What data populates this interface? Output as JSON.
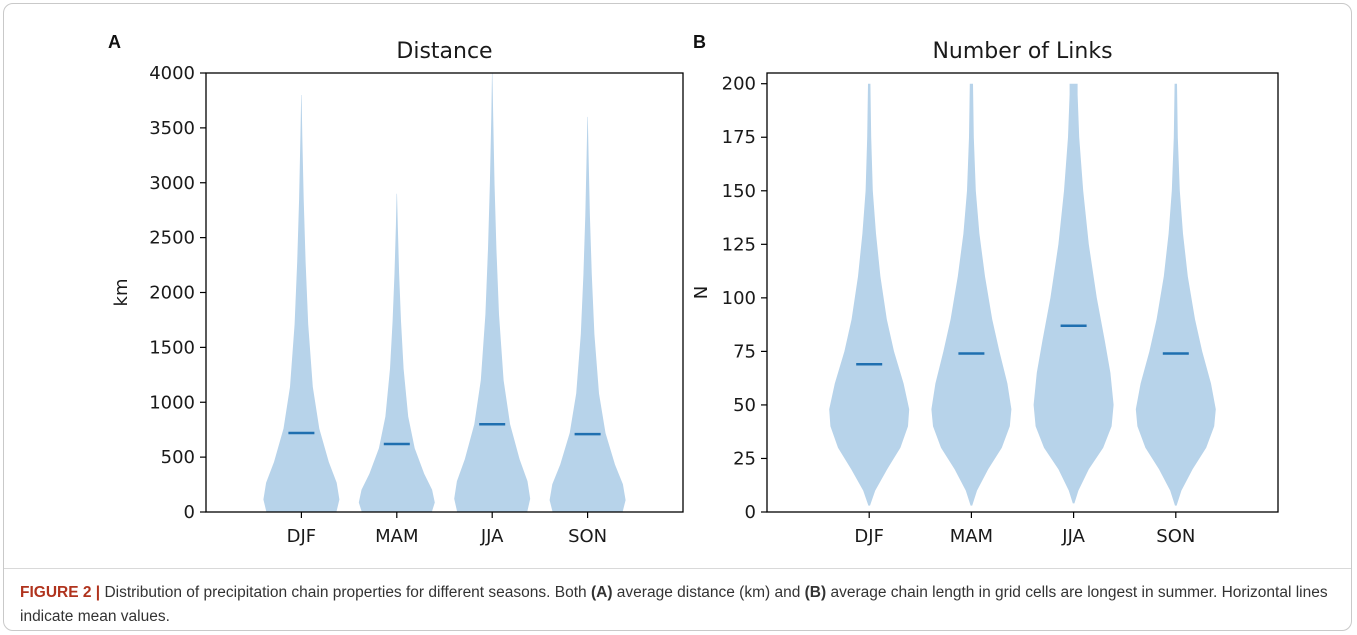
{
  "colors": {
    "violin_fill": "#b7d3ea",
    "mean_line": "#1f6fb0",
    "axis": "#000000",
    "caption_label": "#b0331d"
  },
  "chart_data": [
    {
      "type": "violin",
      "panel_letter": "A",
      "title": "Distance",
      "xlabel": "",
      "ylabel": "km",
      "categories": [
        "DJF",
        "MAM",
        "JJA",
        "SON"
      ],
      "ylim": [
        0,
        4000
      ],
      "yticks": [
        0,
        500,
        1000,
        1500,
        2000,
        2500,
        3000,
        3500,
        4000
      ],
      "means": [
        720,
        620,
        800,
        710
      ],
      "max_values": [
        3800,
        2900,
        4000,
        3600
      ],
      "grid": false
    },
    {
      "type": "violin",
      "panel_letter": "B",
      "title": "Number of Links",
      "xlabel": "",
      "ylabel": "N",
      "categories": [
        "DJF",
        "MAM",
        "JJA",
        "SON"
      ],
      "ylim": [
        0,
        205
      ],
      "yticks": [
        0,
        25,
        50,
        75,
        100,
        125,
        150,
        175,
        200
      ],
      "means": [
        69,
        74,
        87,
        74
      ],
      "min_values": [
        3,
        3,
        4,
        3
      ],
      "max_values": [
        200,
        200,
        200,
        200
      ],
      "grid": false
    }
  ],
  "caption": {
    "label": "FIGURE 2 |",
    "part1": " Distribution of precipitation chain properties for different seasons. Both ",
    "ref_a": "(A)",
    "part2": " average distance (km) and ",
    "ref_b": "(B)",
    "part3": " average chain length in grid cells are longest in summer. Horizontal lines indicate mean values."
  }
}
